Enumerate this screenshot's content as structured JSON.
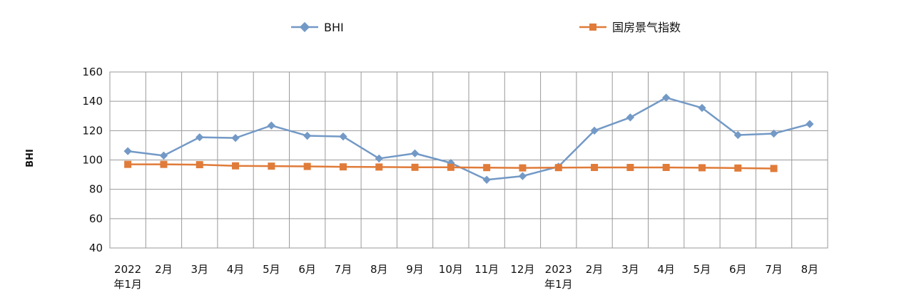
{
  "chart_data": {
    "type": "line",
    "title": "",
    "xlabel": "",
    "ylabel": "BHI",
    "ylim": [
      40,
      160
    ],
    "yticks": [
      40,
      60,
      80,
      100,
      120,
      140,
      160
    ],
    "grid": true,
    "legend_position": "top",
    "categories": [
      [
        "2022",
        "年1月"
      ],
      [
        "2月"
      ],
      [
        "3月"
      ],
      [
        "4月"
      ],
      [
        "5月"
      ],
      [
        "6月"
      ],
      [
        "7月"
      ],
      [
        "8月"
      ],
      [
        "9月"
      ],
      [
        "10月"
      ],
      [
        "11月"
      ],
      [
        "12月"
      ],
      [
        "2023",
        "年1月"
      ],
      [
        "2月"
      ],
      [
        "3月"
      ],
      [
        "4月"
      ],
      [
        "5月"
      ],
      [
        "6月"
      ],
      [
        "7月"
      ],
      [
        "8月"
      ]
    ],
    "series": [
      {
        "name": "BHI",
        "color": "#7399c6",
        "marker": "diamond",
        "values": [
          106,
          103,
          115.5,
          115,
          123.5,
          116.5,
          116,
          101,
          104.5,
          98,
          86.5,
          89,
          95.5,
          120,
          129,
          142.5,
          135.5,
          117,
          118,
          124.5
        ]
      },
      {
        "name": "国房景气指数",
        "color": "#e07b39",
        "marker": "square",
        "values": [
          97,
          97,
          96.8,
          96,
          95.8,
          95.6,
          95.3,
          95.2,
          95,
          95,
          94.8,
          94.6,
          94.8,
          94.9,
          94.9,
          94.9,
          94.7,
          94.5,
          94.2,
          null
        ]
      }
    ]
  }
}
